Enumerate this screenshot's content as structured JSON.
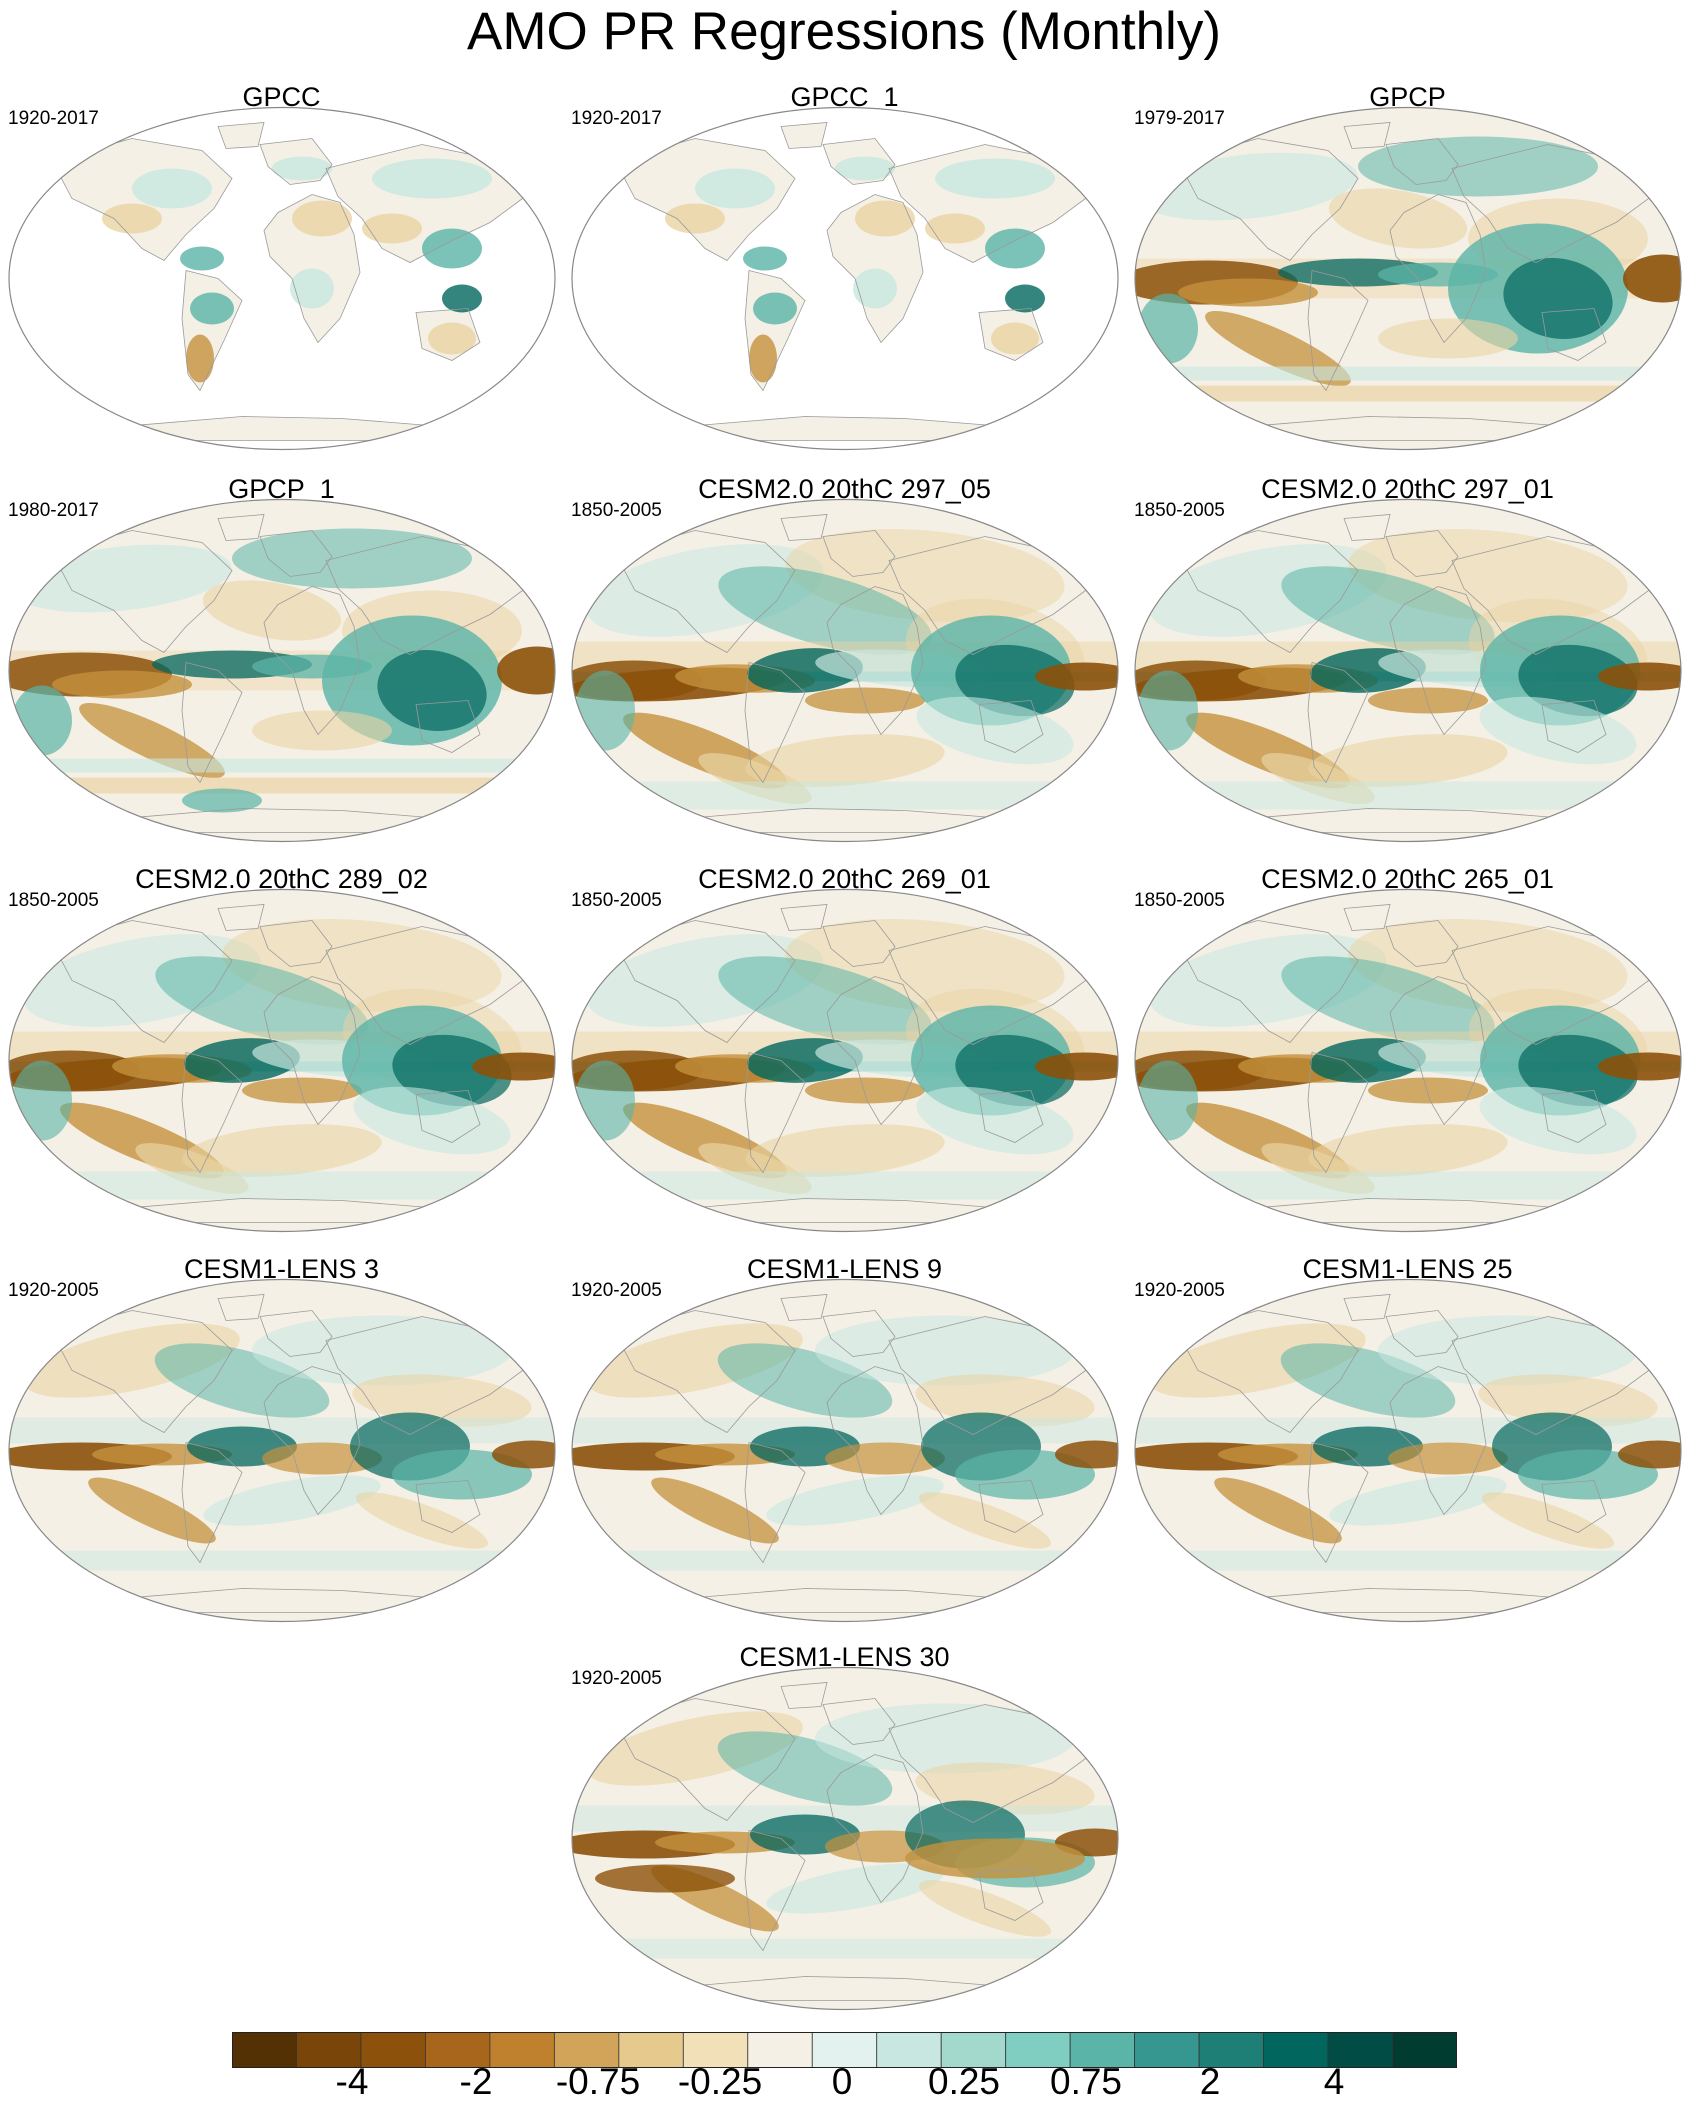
{
  "title": "AMO PR Regressions (Monthly)",
  "palette": {
    "neg_strong": "#8c510a",
    "neg_mid": "#c4913c",
    "neg_weak": "#ead3a3",
    "neutral": "#f5f0e6",
    "pos_weak": "#c7e7e0",
    "pos_mid": "#5ab4a7",
    "pos_strong": "#01665e",
    "coast": "#9a9a9a",
    "outline": "#888888"
  },
  "panels": [
    {
      "title": "GPCC",
      "period": "1920-2017",
      "type": "land"
    },
    {
      "title": "GPCC_1",
      "period": "1920-2017",
      "type": "land"
    },
    {
      "title": "GPCP",
      "period": "1979-2017",
      "type": "obs"
    },
    {
      "title": "GPCP_1",
      "period": "1980-2017",
      "type": "obs"
    },
    {
      "title": "CESM2.0 20thC 297_05",
      "period": "1850-2005",
      "type": "model"
    },
    {
      "title": "CESM2.0 20thC 297_01",
      "period": "1850-2005",
      "type": "model"
    },
    {
      "title": "CESM2.0 20thC 289_02",
      "period": "1850-2005",
      "type": "model"
    },
    {
      "title": "CESM2.0 20thC 269_01",
      "period": "1850-2005",
      "type": "model"
    },
    {
      "title": "CESM2.0 20thC 265_01",
      "period": "1850-2005",
      "type": "model"
    },
    {
      "title": "CESM1-LENS 3",
      "period": "1920-2005",
      "type": "lens"
    },
    {
      "title": "CESM1-LENS 9",
      "period": "1920-2005",
      "type": "lens"
    },
    {
      "title": "CESM1-LENS 25",
      "period": "1920-2005",
      "type": "lens"
    },
    {
      "title": "CESM1-LENS 30",
      "period": "1920-2005",
      "type": "lens"
    }
  ],
  "colorbar": {
    "colors": [
      "#543005",
      "#7a4509",
      "#8c510a",
      "#a8661c",
      "#bf812d",
      "#d2a45a",
      "#e6c98c",
      "#f1e0b8",
      "#f5f0e6",
      "#e3f2ee",
      "#c7e7e0",
      "#a3d8cd",
      "#80cdc1",
      "#5ab4a7",
      "#35978f",
      "#1d7f76",
      "#01665e",
      "#014c44",
      "#003c30"
    ],
    "labels": [
      {
        "text": "-4",
        "boundary": 1
      },
      {
        "text": "-2",
        "boundary": 2
      },
      {
        "text": "-0.75",
        "boundary": 3
      },
      {
        "text": "-0.25",
        "boundary": 4
      },
      {
        "text": "0",
        "boundary": 5
      },
      {
        "text": "0.25",
        "boundary": 6
      },
      {
        "text": "0.75",
        "boundary": 7
      },
      {
        "text": "2",
        "boundary": 8
      },
      {
        "text": "4",
        "boundary": 9
      }
    ]
  }
}
